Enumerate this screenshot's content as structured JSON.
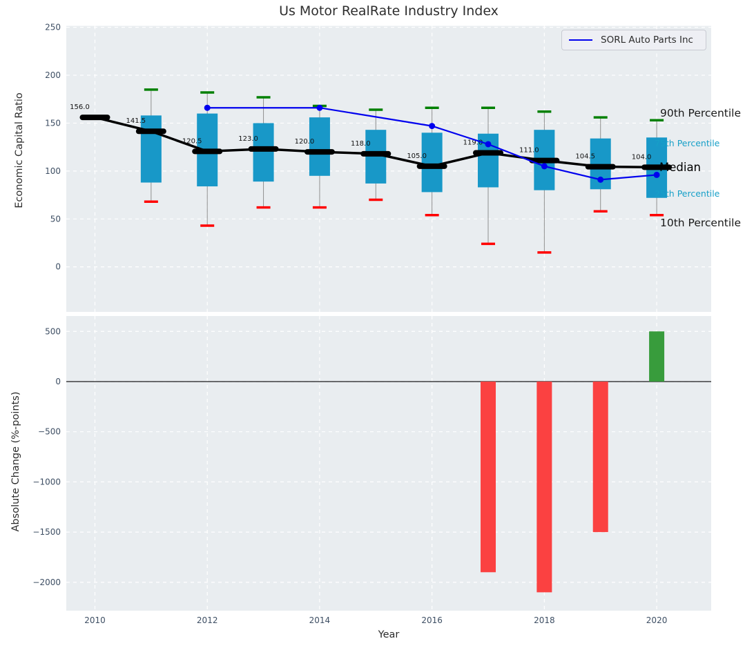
{
  "title": "Us Motor RealRate Industry Index",
  "legend": {
    "label": "SORL Auto Parts Inc"
  },
  "annotations": {
    "p90": "90th Percentile",
    "p75": "75th Percentile",
    "median": "Median",
    "p25": "25th Percentile",
    "p10": "10th Percentile"
  },
  "colors": {
    "axes_background": "#e9edf0",
    "grid": "#ffffff",
    "box_fill": "#1898c8",
    "whisker": "#8f8f8f",
    "cap_top_green": "#008000",
    "cap_bottom_red": "#ff0000",
    "median_line": "#000000",
    "company_line": "#0000ee",
    "bar_negative": "#fb4141",
    "bar_positive": "#389c3c",
    "tick_label": "#3d4e63",
    "annotation_cyan": "#17a0c8"
  },
  "chart_data": [
    {
      "type": "boxplot+line",
      "title": "Us Motor RealRate Industry Index",
      "ylabel": "Economic Capital Ratio",
      "xlabel": "",
      "grid": true,
      "legend_position": "upper right",
      "ylim": [
        -47,
        251.5
      ],
      "yticks": [
        0,
        50,
        100,
        150,
        200,
        250
      ],
      "xlim": [
        2009.49,
        2020.97
      ],
      "xticks": [
        2010,
        2012,
        2014,
        2016,
        2018,
        2020
      ],
      "years": [
        2010,
        2011,
        2012,
        2013,
        2014,
        2015,
        2016,
        2017,
        2018,
        2019,
        2020
      ],
      "median": [
        156.0,
        141.5,
        120.5,
        123.0,
        120.0,
        118.0,
        105.0,
        119.0,
        111.0,
        104.5,
        104.0
      ],
      "q75": [
        null,
        158,
        160,
        150,
        156,
        143,
        140,
        139,
        143,
        134,
        135
      ],
      "q25": [
        null,
        88,
        84,
        89,
        95,
        87,
        78,
        83,
        80,
        81,
        72
      ],
      "p90": [
        null,
        185,
        182,
        177,
        168,
        164,
        166,
        166,
        162,
        156,
        153
      ],
      "p10": [
        null,
        68,
        43,
        62,
        62,
        70,
        54,
        24,
        15,
        58,
        54
      ],
      "series": [
        {
          "name": "SORL Auto Parts Inc",
          "x": [
            2012,
            2014,
            2016,
            2017,
            2018,
            2019,
            2020
          ],
          "y": [
            166,
            166,
            147,
            128,
            105,
            91,
            96
          ]
        }
      ]
    },
    {
      "type": "bar",
      "ylabel": "Absolute Change (%-points)",
      "xlabel": "Year",
      "grid": true,
      "ylim": [
        -2283,
        653
      ],
      "yticks": [
        500,
        0,
        -500,
        -1000,
        -1500,
        -2000
      ],
      "xlim": [
        2009.49,
        2020.97
      ],
      "xticks": [
        2010,
        2012,
        2014,
        2016,
        2018,
        2020
      ],
      "categories": [
        2017,
        2018,
        2019,
        2020
      ],
      "values": [
        -1900,
        -2100,
        -1500,
        500
      ]
    }
  ]
}
